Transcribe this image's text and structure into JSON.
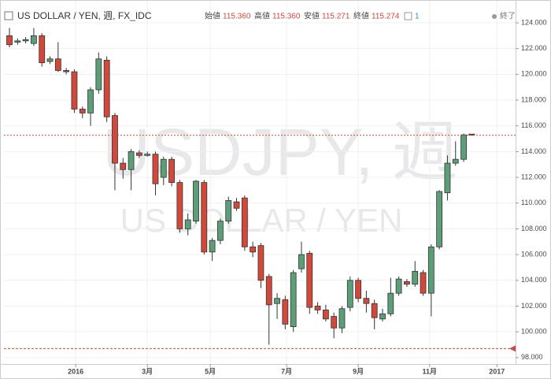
{
  "chart_data": {
    "type": "candlestick",
    "title": "US DOLLAR / YEN, 週, FX_IDC",
    "legend": {
      "open_label": "始値",
      "open": "115.360",
      "high_label": "高値",
      "high": "115.360",
      "low_label": "安値",
      "low": "115.271",
      "close_label": "終値",
      "close": "115.274",
      "count": "1",
      "status": "終了"
    },
    "watermark": [
      "USDJPY, 週",
      "US DOLLAR / YEN"
    ],
    "up_color": "#5c9e77",
    "down_color": "#d2483a",
    "open": [
      123.0,
      122.5,
      122.6,
      122.4,
      123.0,
      121.0,
      121.2,
      120.3,
      120.2,
      117.3,
      117.0,
      118.8,
      121.1,
      116.8,
      113.1,
      112.6,
      113.9,
      113.7,
      113.8,
      112.0,
      113.4,
      111.6,
      108.0,
      108.6,
      111.6,
      106.2,
      107.1,
      108.6,
      110.1,
      110.4,
      106.6,
      106.7,
      104.3,
      102.2,
      102.5,
      100.4,
      104.9,
      106.1,
      102.0,
      101.7,
      101.2,
      100.3,
      101.9,
      104.0,
      102.6,
      102.2,
      101.0,
      101.4,
      103.0,
      103.9,
      103.7,
      104.6,
      103.0,
      106.6,
      110.8,
      113.1,
      113.4,
      115.36
    ],
    "high": [
      123.6,
      122.8,
      122.9,
      123.6,
      123.2,
      121.4,
      122.5,
      120.5,
      120.4,
      117.5,
      119.0,
      121.7,
      121.4,
      117.0,
      113.5,
      114.2,
      114.1,
      114.0,
      114.0,
      113.6,
      113.6,
      111.8,
      109.2,
      111.8,
      111.8,
      107.3,
      108.8,
      110.5,
      110.4,
      110.6,
      107.0,
      106.9,
      104.5,
      103.0,
      102.8,
      104.8,
      107.0,
      106.3,
      102.3,
      102.1,
      101.5,
      102.0,
      104.3,
      104.2,
      103.2,
      102.5,
      101.8,
      104.2,
      104.3,
      104.1,
      105.5,
      104.8,
      106.8,
      111.0,
      113.7,
      114.8,
      115.4,
      115.36
    ],
    "low": [
      122.1,
      122.3,
      122.4,
      122.2,
      120.6,
      120.8,
      120.2,
      120.0,
      117.0,
      116.6,
      116.0,
      118.5,
      116.3,
      111.0,
      111.9,
      111.0,
      113.5,
      113.6,
      110.6,
      111.4,
      111.3,
      107.7,
      107.5,
      108.4,
      106.0,
      105.5,
      106.8,
      108.4,
      109.4,
      106.3,
      105.8,
      103.4,
      99.0,
      101.0,
      100.2,
      100.0,
      104.6,
      101.4,
      101.4,
      100.8,
      99.5,
      99.9,
      101.6,
      102.3,
      101.5,
      100.2,
      100.8,
      101.2,
      102.8,
      103.5,
      103.5,
      102.8,
      101.2,
      106.4,
      110.2,
      112.9,
      113.2,
      115.271
    ],
    "close": [
      122.3,
      122.6,
      122.7,
      123.0,
      120.9,
      121.2,
      120.3,
      120.2,
      117.3,
      117.0,
      118.8,
      121.2,
      116.7,
      113.1,
      112.6,
      114.0,
      113.7,
      113.8,
      111.5,
      113.4,
      111.6,
      108.0,
      108.7,
      111.7,
      106.2,
      107.1,
      108.6,
      110.2,
      109.6,
      106.6,
      106.2,
      104.0,
      102.1,
      102.6,
      100.6,
      104.6,
      106.0,
      101.9,
      101.7,
      101.0,
      100.3,
      101.8,
      104.0,
      102.6,
      102.2,
      101.1,
      101.4,
      103.0,
      104.1,
      103.7,
      104.7,
      103.0,
      106.6,
      110.9,
      113.1,
      113.4,
      115.3,
      115.274
    ],
    "last_price": 115.274,
    "alert_price": 98.7,
    "xlim": [
      -0.68,
      62.4
    ],
    "xticks": [
      {
        "value": 8.16,
        "label": "2016"
      },
      {
        "value": 17.0,
        "label": "3月"
      },
      {
        "value": 24.76,
        "label": "5月"
      },
      {
        "value": 34.17,
        "label": "7月"
      },
      {
        "value": 43.0,
        "label": "9月"
      },
      {
        "value": 51.8,
        "label": "11月"
      },
      {
        "value": 60.1,
        "label": "2017"
      }
    ],
    "ylim": [
      97.5,
      124.55
    ],
    "yticks": [
      {
        "value": 98,
        "label": "98.000"
      },
      {
        "value": 100,
        "label": "100.000"
      },
      {
        "value": 102,
        "label": "102.000"
      },
      {
        "value": 104,
        "label": "104.000"
      },
      {
        "value": 106,
        "label": "106.000"
      },
      {
        "value": 108,
        "label": "108.000"
      },
      {
        "value": 110,
        "label": "110.000"
      },
      {
        "value": 112,
        "label": "112.000"
      },
      {
        "value": 114,
        "label": "114.000"
      },
      {
        "value": 116,
        "label": "116.000"
      },
      {
        "value": 118,
        "label": "118.000"
      },
      {
        "value": 120,
        "label": "120.000"
      },
      {
        "value": 122,
        "label": "122.000"
      },
      {
        "value": 124,
        "label": "124.000"
      }
    ],
    "grid": true
  }
}
